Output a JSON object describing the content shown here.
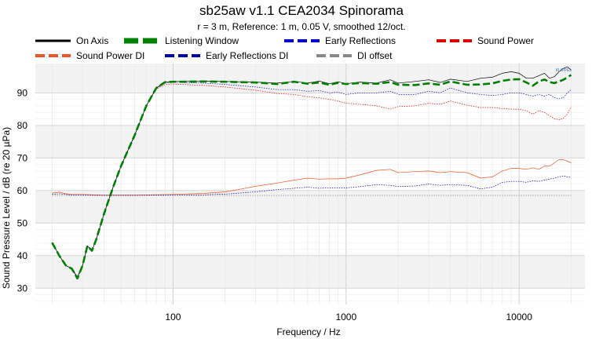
{
  "chart_data": {
    "type": "line",
    "title": "sb25aw v1.1 CEA2034 Spinorama",
    "subtitle": "r = 3 m,  Reference: 1 m, 0.05 V, smoothed 12/oct.",
    "xlabel": "Frequency / Hz",
    "ylabel": "Sound Pressure Level / dB (re 20 µPa)",
    "x_scale": "log",
    "xlim": [
      16,
      24000
    ],
    "ylim": [
      25,
      99
    ],
    "x_ticks": [
      {
        "value": 100,
        "label": "100"
      },
      {
        "value": 1000,
        "label": "1000"
      },
      {
        "value": 10000,
        "label": "10000"
      }
    ],
    "y_ticks": [
      30,
      40,
      50,
      60,
      70,
      80,
      90
    ],
    "grid": true,
    "legend_position": "top",
    "logo_text": "KLIPPEL",
    "series": [
      {
        "name": "On Axis",
        "color": "#000000",
        "style": "solid",
        "width": 0.7,
        "points": [
          [
            20,
            44
          ],
          [
            22,
            40
          ],
          [
            24,
            37
          ],
          [
            26,
            36
          ],
          [
            28,
            33.5
          ],
          [
            30,
            37
          ],
          [
            32,
            43
          ],
          [
            34,
            41.5
          ],
          [
            36,
            45
          ],
          [
            40,
            53
          ],
          [
            45,
            61
          ],
          [
            50,
            67.5
          ],
          [
            60,
            77
          ],
          [
            70,
            86
          ],
          [
            80,
            91.5
          ],
          [
            90,
            93.3
          ],
          [
            100,
            93.5
          ],
          [
            150,
            93.6
          ],
          [
            200,
            93.5
          ],
          [
            300,
            93.3
          ],
          [
            400,
            93
          ],
          [
            500,
            93.5
          ],
          [
            600,
            93
          ],
          [
            700,
            93.6
          ],
          [
            800,
            92.8
          ],
          [
            900,
            93.4
          ],
          [
            1000,
            92.8
          ],
          [
            1200,
            93.3
          ],
          [
            1500,
            93
          ],
          [
            1800,
            94
          ],
          [
            2000,
            93
          ],
          [
            2500,
            93.5
          ],
          [
            3000,
            94
          ],
          [
            3500,
            93.2
          ],
          [
            4000,
            94.2
          ],
          [
            5000,
            93.5
          ],
          [
            6000,
            94.5
          ],
          [
            7000,
            94.8
          ],
          [
            8000,
            96
          ],
          [
            9000,
            96.5
          ],
          [
            10000,
            96
          ],
          [
            11000,
            94.5
          ],
          [
            12000,
            94.5
          ],
          [
            14000,
            96
          ],
          [
            15000,
            94.5
          ],
          [
            16000,
            95
          ],
          [
            17000,
            96.5
          ],
          [
            18000,
            97.5
          ],
          [
            19000,
            98
          ],
          [
            20000,
            97
          ]
        ]
      },
      {
        "name": "Listening Window",
        "color": "#008000",
        "style": "dashed-thick",
        "width": 2.6,
        "points": [
          [
            20,
            44
          ],
          [
            22,
            40
          ],
          [
            24,
            37
          ],
          [
            26,
            36
          ],
          [
            28,
            33
          ],
          [
            30,
            37
          ],
          [
            32,
            43
          ],
          [
            34,
            41.5
          ],
          [
            36,
            45
          ],
          [
            40,
            53
          ],
          [
            45,
            61
          ],
          [
            50,
            67.5
          ],
          [
            60,
            77
          ],
          [
            70,
            86
          ],
          [
            80,
            91.5
          ],
          [
            90,
            93.3
          ],
          [
            100,
            93.4
          ],
          [
            150,
            93.5
          ],
          [
            200,
            93.4
          ],
          [
            300,
            93.2
          ],
          [
            400,
            92.7
          ],
          [
            500,
            93.4
          ],
          [
            600,
            92.8
          ],
          [
            700,
            93.2
          ],
          [
            800,
            92.5
          ],
          [
            900,
            93.1
          ],
          [
            1000,
            92.7
          ],
          [
            1200,
            93
          ],
          [
            1500,
            92.8
          ],
          [
            1800,
            93.3
          ],
          [
            2000,
            92.5
          ],
          [
            2500,
            92.4
          ],
          [
            3000,
            92.9
          ],
          [
            3500,
            92.5
          ],
          [
            4000,
            93.5
          ],
          [
            5000,
            92.5
          ],
          [
            6000,
            92.6
          ],
          [
            7000,
            92.9
          ],
          [
            8000,
            93.7
          ],
          [
            9000,
            94.1
          ],
          [
            10000,
            94.2
          ],
          [
            11000,
            93.2
          ],
          [
            12000,
            92.2
          ],
          [
            13000,
            93.5
          ],
          [
            14000,
            94.1
          ],
          [
            15000,
            93.3
          ],
          [
            16000,
            93
          ],
          [
            17000,
            93.5
          ],
          [
            18000,
            94
          ],
          [
            20000,
            95.5
          ]
        ]
      },
      {
        "name": "Early Reflections",
        "color": "#0000cc",
        "style": "dotted",
        "width": 0.7,
        "points": [
          [
            20,
            44
          ],
          [
            22,
            40
          ],
          [
            24,
            37
          ],
          [
            26,
            36
          ],
          [
            28,
            33
          ],
          [
            30,
            37
          ],
          [
            32,
            43
          ],
          [
            34,
            41.5
          ],
          [
            36,
            45
          ],
          [
            40,
            53
          ],
          [
            45,
            61
          ],
          [
            50,
            67.5
          ],
          [
            60,
            77
          ],
          [
            70,
            86
          ],
          [
            80,
            91.4
          ],
          [
            90,
            93
          ],
          [
            100,
            93.2
          ],
          [
            150,
            93
          ],
          [
            200,
            92.6
          ],
          [
            300,
            91.8
          ],
          [
            400,
            91
          ],
          [
            500,
            91
          ],
          [
            600,
            90.5
          ],
          [
            700,
            90.7
          ],
          [
            800,
            90
          ],
          [
            900,
            90.2
          ],
          [
            1000,
            89.5
          ],
          [
            1200,
            90
          ],
          [
            1500,
            90
          ],
          [
            1800,
            90.5
          ],
          [
            2000,
            89.5
          ],
          [
            2500,
            89.5
          ],
          [
            3000,
            90.5
          ],
          [
            3500,
            90
          ],
          [
            4000,
            91.5
          ],
          [
            5000,
            90
          ],
          [
            6000,
            89.5
          ],
          [
            7000,
            89.2
          ],
          [
            8000,
            89.5
          ],
          [
            9000,
            90
          ],
          [
            10000,
            90
          ],
          [
            11000,
            89.5
          ],
          [
            12000,
            89
          ],
          [
            13000,
            89.5
          ],
          [
            14000,
            89
          ],
          [
            15000,
            89.5
          ],
          [
            16000,
            88.5
          ],
          [
            17000,
            88.2
          ],
          [
            18000,
            88.5
          ],
          [
            19000,
            90
          ],
          [
            20000,
            91
          ]
        ]
      },
      {
        "name": "Sound Power",
        "color": "#dd0000",
        "style": "dotted",
        "width": 0.7,
        "points": [
          [
            20,
            44
          ],
          [
            22,
            40
          ],
          [
            24,
            37
          ],
          [
            26,
            36
          ],
          [
            28,
            33
          ],
          [
            30,
            37
          ],
          [
            32,
            43
          ],
          [
            34,
            41.5
          ],
          [
            36,
            45
          ],
          [
            40,
            53
          ],
          [
            45,
            61
          ],
          [
            50,
            67.5
          ],
          [
            60,
            77
          ],
          [
            70,
            86
          ],
          [
            80,
            91.2
          ],
          [
            90,
            92.6
          ],
          [
            100,
            92.7
          ],
          [
            150,
            92.3
          ],
          [
            200,
            91.8
          ],
          [
            300,
            90.8
          ],
          [
            400,
            89.8
          ],
          [
            500,
            89.5
          ],
          [
            600,
            88.8
          ],
          [
            700,
            88.5
          ],
          [
            800,
            88
          ],
          [
            900,
            87.5
          ],
          [
            1000,
            86.8
          ],
          [
            1200,
            86.5
          ],
          [
            1500,
            86
          ],
          [
            1800,
            85
          ],
          [
            2000,
            85.8
          ],
          [
            2500,
            86
          ],
          [
            3000,
            86.8
          ],
          [
            3500,
            86.5
          ],
          [
            4000,
            87.5
          ],
          [
            5000,
            86.2
          ],
          [
            6000,
            85.5
          ],
          [
            7000,
            85.5
          ],
          [
            8000,
            85.2
          ],
          [
            9000,
            85
          ],
          [
            10000,
            85
          ],
          [
            11000,
            84.5
          ],
          [
            12000,
            83.5
          ],
          [
            13000,
            84.5
          ],
          [
            14000,
            84
          ],
          [
            15000,
            83
          ],
          [
            16000,
            82
          ],
          [
            17000,
            81.8
          ],
          [
            18000,
            82.2
          ],
          [
            19000,
            83.5
          ],
          [
            20000,
            85.8
          ]
        ]
      },
      {
        "name": "Sound Power DI",
        "color": "#ee5522",
        "style": "solid",
        "width": 0.7,
        "points": [
          [
            20,
            59.2
          ],
          [
            22,
            59.5
          ],
          [
            24,
            59
          ],
          [
            26,
            58.8
          ],
          [
            30,
            58.8
          ],
          [
            40,
            58.6
          ],
          [
            60,
            58.6
          ],
          [
            80,
            58.7
          ],
          [
            100,
            58.8
          ],
          [
            150,
            59.1
          ],
          [
            200,
            59.6
          ],
          [
            250,
            60.5
          ],
          [
            300,
            61.3
          ],
          [
            400,
            62.3
          ],
          [
            500,
            63.2
          ],
          [
            600,
            63.8
          ],
          [
            700,
            63.5
          ],
          [
            800,
            63.6
          ],
          [
            900,
            63.6
          ],
          [
            1000,
            63.8
          ],
          [
            1200,
            64.8
          ],
          [
            1500,
            66.2
          ],
          [
            1800,
            66.5
          ],
          [
            2000,
            65.5
          ],
          [
            2500,
            65.8
          ],
          [
            3000,
            66
          ],
          [
            3500,
            65.5
          ],
          [
            4000,
            65.8
          ],
          [
            5000,
            65.5
          ],
          [
            6000,
            63.8
          ],
          [
            7000,
            64.2
          ],
          [
            8000,
            66
          ],
          [
            9000,
            66.8
          ],
          [
            10000,
            66.8
          ],
          [
            11000,
            66.5
          ],
          [
            12000,
            67
          ],
          [
            13000,
            66.5
          ],
          [
            14000,
            67.5
          ],
          [
            15000,
            67.5
          ],
          [
            16000,
            68.5
          ],
          [
            17000,
            69.5
          ],
          [
            18000,
            69.5
          ],
          [
            19000,
            69
          ],
          [
            20000,
            68.5
          ]
        ]
      },
      {
        "name": "Early Reflections DI",
        "color": "#0000aa",
        "style": "dotted",
        "width": 0.7,
        "points": [
          [
            20,
            58.8
          ],
          [
            22,
            59
          ],
          [
            24,
            58.8
          ],
          [
            26,
            58.6
          ],
          [
            30,
            58.6
          ],
          [
            40,
            58.5
          ],
          [
            60,
            58.5
          ],
          [
            80,
            58.6
          ],
          [
            100,
            58.6
          ],
          [
            150,
            58.7
          ],
          [
            200,
            58.9
          ],
          [
            300,
            59.6
          ],
          [
            400,
            60.3
          ],
          [
            500,
            60.7
          ],
          [
            600,
            61
          ],
          [
            700,
            60.7
          ],
          [
            800,
            60.8
          ],
          [
            1000,
            60.8
          ],
          [
            1200,
            61.2
          ],
          [
            1500,
            61.8
          ],
          [
            1800,
            61.6
          ],
          [
            2000,
            61.2
          ],
          [
            2500,
            61.4
          ],
          [
            3000,
            62
          ],
          [
            3500,
            61.6
          ],
          [
            4000,
            61.8
          ],
          [
            5000,
            61.6
          ],
          [
            6000,
            60.5
          ],
          [
            7000,
            61
          ],
          [
            8000,
            62.5
          ],
          [
            9000,
            62.8
          ],
          [
            10000,
            62.8
          ],
          [
            11000,
            62.5
          ],
          [
            12000,
            63
          ],
          [
            13000,
            62.8
          ],
          [
            14000,
            63.2
          ],
          [
            15000,
            63.5
          ],
          [
            16000,
            63.8
          ],
          [
            17000,
            64.2
          ],
          [
            18000,
            64.5
          ],
          [
            19000,
            64.2
          ],
          [
            20000,
            64
          ]
        ]
      },
      {
        "name": "DI offset",
        "color": "#888888",
        "style": "dotted",
        "width": 0.7,
        "points": [
          [
            20,
            58.5
          ],
          [
            20000,
            58.5
          ]
        ]
      }
    ]
  }
}
